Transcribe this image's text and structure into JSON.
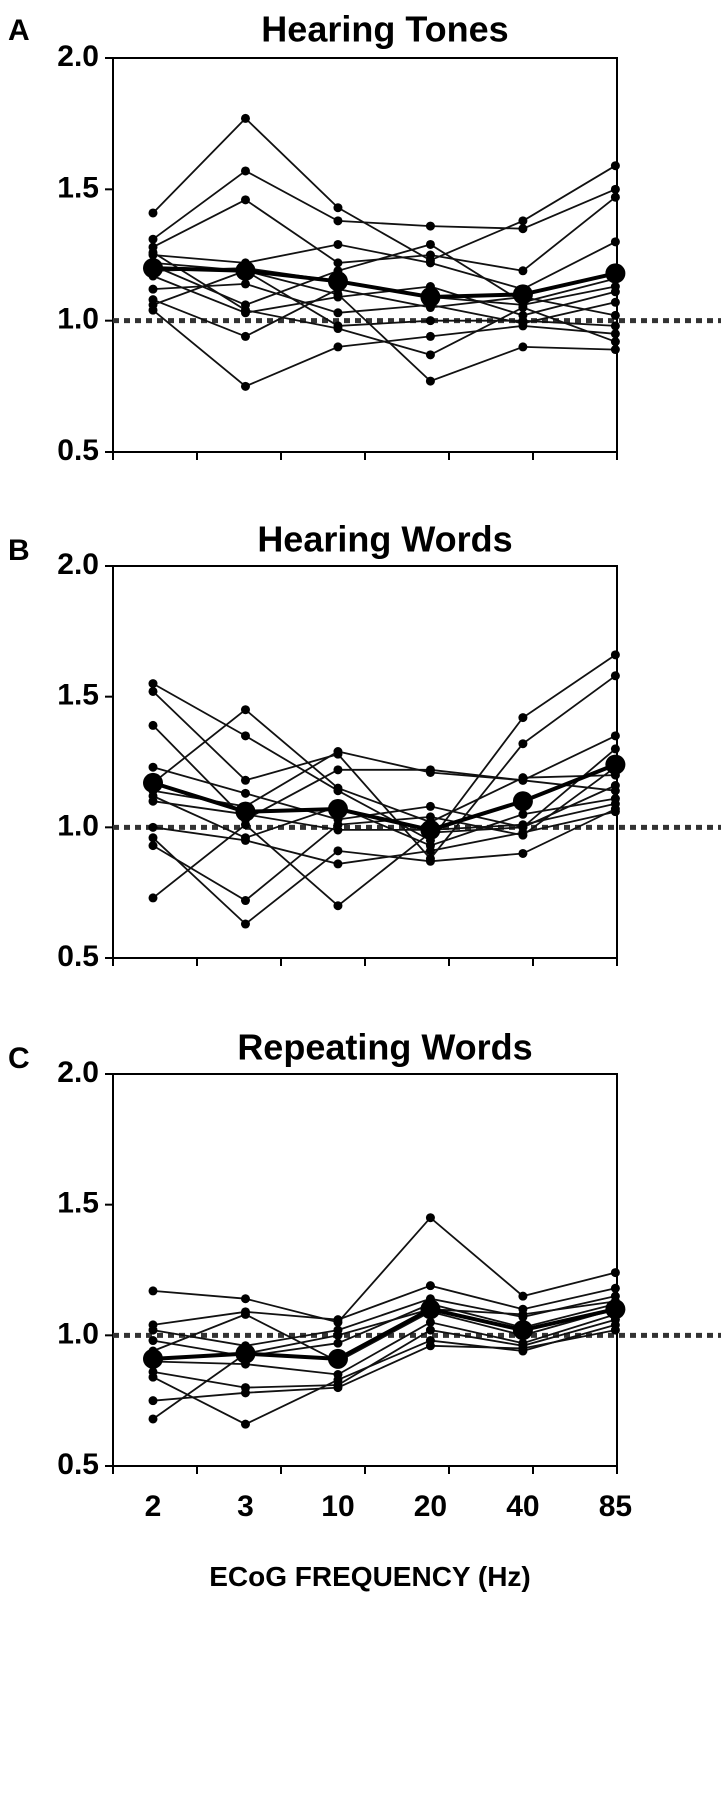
{
  "chart_data": [
    {
      "type": "line",
      "panel_letter": "A",
      "title": "Hearing Tones",
      "categories": [
        "2",
        "3",
        "10",
        "20",
        "40",
        "85"
      ],
      "ylim": [
        0.5,
        2.0
      ],
      "yticks": [
        "0.5",
        "1.0",
        "1.5",
        "2.0"
      ],
      "xlabel": "",
      "reference_line": 1.0,
      "series": [
        {
          "values": [
            1.41,
            1.77,
            1.43,
            1.23,
            1.38,
            1.59
          ]
        },
        {
          "values": [
            1.31,
            1.57,
            1.38,
            1.36,
            1.35,
            1.5
          ]
        },
        {
          "values": [
            1.28,
            1.46,
            1.22,
            1.25,
            1.19,
            1.47
          ]
        },
        {
          "values": [
            1.25,
            1.22,
            1.29,
            1.22,
            1.12,
            1.3
          ]
        },
        {
          "values": [
            1.21,
            1.06,
            1.19,
            1.29,
            1.07,
            1.16
          ]
        },
        {
          "values": [
            1.19,
            1.2,
            1.15,
            1.09,
            1.06,
            1.13
          ]
        },
        {
          "values": [
            1.17,
            1.03,
            1.09,
            1.13,
            1.02,
            1.11
          ]
        },
        {
          "values": [
            1.12,
            1.14,
            1.03,
            1.06,
            0.99,
            1.07
          ]
        },
        {
          "values": [
            1.08,
            0.94,
            1.12,
            1.05,
            1.09,
            1.02
          ]
        },
        {
          "values": [
            1.06,
            1.19,
            0.98,
            1.0,
            1.0,
            0.98
          ]
        },
        {
          "values": [
            1.04,
            0.75,
            0.9,
            0.94,
            0.98,
            0.95
          ]
        },
        {
          "values": [
            1.26,
            1.04,
            0.97,
            0.87,
            1.05,
            0.92
          ]
        },
        {
          "values": [
            1.22,
            1.19,
            1.1,
            0.77,
            0.9,
            0.89
          ]
        }
      ],
      "mean": [
        1.2,
        1.19,
        1.15,
        1.09,
        1.1,
        1.18
      ]
    },
    {
      "type": "line",
      "panel_letter": "B",
      "title": "Hearing Words",
      "categories": [
        "2",
        "3",
        "10",
        "20",
        "40",
        "85"
      ],
      "ylim": [
        0.5,
        2.0
      ],
      "yticks": [
        "0.5",
        "1.0",
        "1.5",
        "2.0"
      ],
      "xlabel": "",
      "reference_line": 1.0,
      "series": [
        {
          "values": [
            1.55,
            1.35,
            1.14,
            0.95,
            1.42,
            1.66
          ]
        },
        {
          "values": [
            1.52,
            1.18,
            1.28,
            0.88,
            1.32,
            1.58
          ]
        },
        {
          "values": [
            1.39,
            1.03,
            1.22,
            1.22,
            1.18,
            1.35
          ]
        },
        {
          "values": [
            1.23,
            1.13,
            1.03,
            1.08,
            1.0,
            1.3
          ]
        },
        {
          "values": [
            1.17,
            1.45,
            1.15,
            1.02,
            1.19,
            1.2
          ]
        },
        {
          "values": [
            1.14,
            1.08,
            1.29,
            1.21,
            1.18,
            1.14
          ]
        },
        {
          "values": [
            1.12,
            0.96,
            1.08,
            0.93,
            1.05,
            1.11
          ]
        },
        {
          "values": [
            1.1,
            1.05,
            0.99,
            0.99,
            1.01,
            1.09
          ]
        },
        {
          "values": [
            1.0,
            0.95,
            0.86,
            0.91,
            0.98,
            1.06
          ]
        },
        {
          "values": [
            0.96,
            0.63,
            0.91,
            0.87,
            0.9,
            1.07
          ]
        },
        {
          "values": [
            0.93,
            0.72,
            1.01,
            1.04,
            0.97,
            1.23
          ]
        },
        {
          "values": [
            0.73,
            1.01,
            0.7,
            0.98,
            1.0,
            1.16
          ]
        }
      ],
      "mean": [
        1.17,
        1.06,
        1.07,
        0.99,
        1.1,
        1.24
      ]
    },
    {
      "type": "line",
      "panel_letter": "C",
      "title": "Repeating Words",
      "categories": [
        "2",
        "3",
        "10",
        "20",
        "40",
        "85"
      ],
      "ylim": [
        0.5,
        2.0
      ],
      "yticks": [
        "0.5",
        "1.0",
        "1.5",
        "2.0"
      ],
      "xlabel": "ECoG FREQUENCY (Hz)",
      "reference_line": 1.0,
      "series": [
        {
          "values": [
            1.17,
            1.14,
            1.05,
            1.45,
            1.15,
            1.24
          ]
        },
        {
          "values": [
            1.04,
            1.09,
            1.06,
            1.19,
            1.1,
            1.18
          ]
        },
        {
          "values": [
            1.02,
            0.96,
            1.02,
            1.14,
            1.07,
            1.15
          ]
        },
        {
          "values": [
            0.98,
            0.92,
            0.97,
            1.12,
            1.03,
            1.12
          ]
        },
        {
          "values": [
            0.94,
            1.08,
            0.9,
            1.09,
            1.0,
            1.1
          ]
        },
        {
          "values": [
            0.9,
            0.89,
            0.85,
            1.05,
            0.97,
            1.08
          ]
        },
        {
          "values": [
            0.86,
            0.8,
            0.81,
            1.02,
            0.96,
            1.06
          ]
        },
        {
          "values": [
            0.84,
            0.66,
            0.83,
            0.98,
            0.94,
            1.04
          ]
        },
        {
          "values": [
            0.75,
            0.78,
            0.8,
            0.96,
            0.95,
            1.02
          ]
        },
        {
          "values": [
            0.68,
            0.93,
            1.0,
            1.1,
            1.08,
            1.13
          ]
        }
      ],
      "mean": [
        0.91,
        0.93,
        0.91,
        1.1,
        1.02,
        1.1
      ]
    }
  ]
}
